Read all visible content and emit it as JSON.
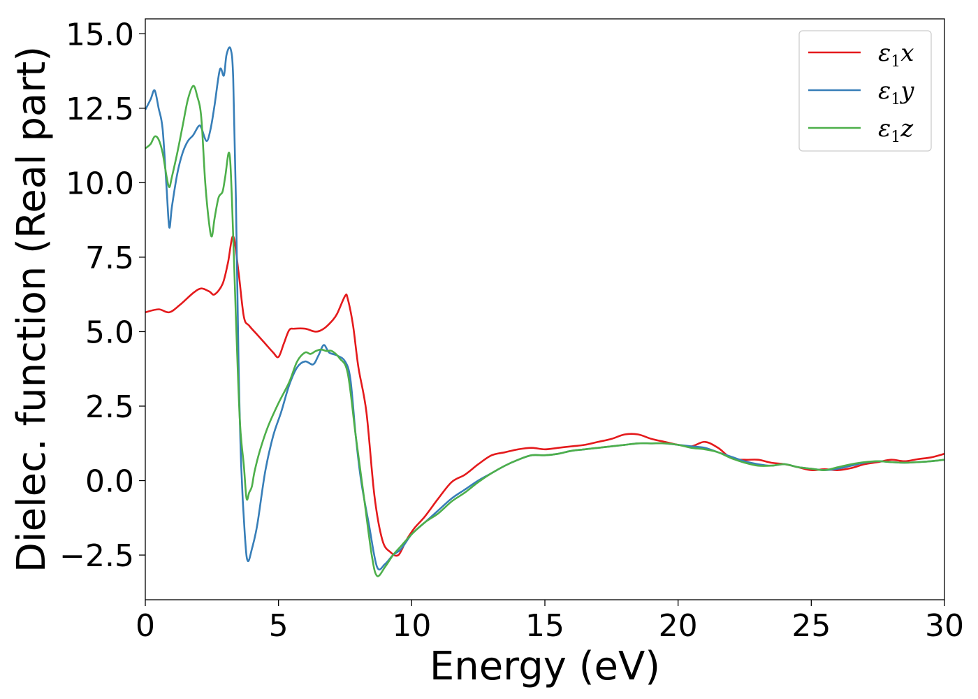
{
  "chart_data": {
    "type": "line",
    "title": "",
    "xlabel": "Energy (eV)",
    "ylabel": "Dielec. function (Real part)",
    "xlim": [
      0,
      30
    ],
    "ylim": [
      -4.0,
      15.5
    ],
    "xticks": [
      0,
      5,
      10,
      15,
      20,
      25,
      30
    ],
    "xtick_labels": [
      "0",
      "5",
      "10",
      "15",
      "20",
      "25",
      "30"
    ],
    "yticks": [
      -2.5,
      0.0,
      2.5,
      5.0,
      7.5,
      10.0,
      12.5,
      15.0
    ],
    "ytick_labels": [
      "−2.5",
      "0.0",
      "2.5",
      "5.0",
      "7.5",
      "10.0",
      "12.5",
      "15.0"
    ],
    "grid": false,
    "legend_position": "top-right",
    "series": [
      {
        "name": "ε1x",
        "legend_main": "ε",
        "legend_sub": "1",
        "legend_tail": "x",
        "color": "#e41a1c",
        "x": [
          0,
          0.5,
          0.9,
          1.3,
          1.8,
          2.1,
          2.4,
          2.6,
          2.9,
          3.1,
          3.3,
          3.5,
          3.7,
          3.9,
          4.2,
          4.5,
          4.8,
          5.0,
          5.2,
          5.4,
          5.6,
          6.0,
          6.4,
          6.7,
          7.0,
          7.2,
          7.5,
          7.6,
          7.8,
          8.0,
          8.3,
          8.6,
          8.9,
          9.2,
          9.5,
          9.8,
          10.1,
          10.5,
          11.0,
          11.5,
          12.0,
          12.5,
          13.0,
          13.5,
          14.0,
          14.5,
          15.0,
          15.5,
          16.0,
          16.5,
          17.0,
          17.5,
          18.0,
          18.5,
          19.0,
          19.5,
          20.0,
          20.5,
          21.0,
          21.5,
          22.0,
          22.5,
          23.0,
          23.5,
          24.0,
          24.5,
          25.0,
          25.5,
          26.0,
          26.5,
          27.0,
          27.5,
          28.0,
          28.5,
          29.0,
          29.5,
          30.0
        ],
        "y": [
          5.65,
          5.75,
          5.65,
          5.9,
          6.3,
          6.45,
          6.35,
          6.25,
          6.6,
          7.3,
          8.2,
          7.0,
          5.5,
          5.2,
          4.9,
          4.6,
          4.3,
          4.15,
          4.6,
          5.05,
          5.1,
          5.1,
          5.0,
          5.1,
          5.35,
          5.6,
          6.2,
          6.1,
          5.2,
          3.8,
          2.3,
          -0.5,
          -2.0,
          -2.4,
          -2.5,
          -2.0,
          -1.6,
          -1.2,
          -0.6,
          -0.05,
          0.2,
          0.55,
          0.85,
          0.95,
          1.05,
          1.1,
          1.05,
          1.1,
          1.15,
          1.2,
          1.3,
          1.4,
          1.55,
          1.55,
          1.4,
          1.3,
          1.2,
          1.15,
          1.3,
          1.1,
          0.75,
          0.7,
          0.7,
          0.6,
          0.55,
          0.45,
          0.35,
          0.38,
          0.35,
          0.42,
          0.55,
          0.62,
          0.7,
          0.65,
          0.72,
          0.78,
          0.9
        ]
      },
      {
        "name": "ε1y",
        "legend_main": "ε",
        "legend_sub": "1",
        "legend_tail": "y",
        "color": "#377eb8",
        "x": [
          0,
          0.2,
          0.35,
          0.5,
          0.65,
          0.8,
          0.9,
          1.0,
          1.2,
          1.4,
          1.6,
          1.8,
          2.0,
          2.1,
          2.3,
          2.45,
          2.6,
          2.8,
          2.95,
          3.05,
          3.2,
          3.3,
          3.4,
          3.5,
          3.6,
          3.75,
          3.85,
          4.0,
          4.2,
          4.5,
          4.8,
          5.1,
          5.4,
          5.7,
          6.0,
          6.3,
          6.5,
          6.7,
          6.9,
          7.2,
          7.5,
          7.7,
          7.9,
          8.1,
          8.4,
          8.7,
          9.0,
          9.3,
          9.6,
          10.0,
          10.5,
          11.0,
          11.5,
          12.0,
          12.5,
          13.0,
          13.5,
          14.0,
          14.5,
          15.0,
          15.5,
          16.0,
          16.5,
          17.0,
          17.5,
          18.0,
          18.5,
          19.0,
          19.5,
          20.0,
          20.5,
          21.0,
          21.5,
          22.0,
          22.5,
          23.0,
          23.5,
          24.0,
          24.5,
          25.0,
          25.5,
          26.0,
          26.5,
          27.0,
          27.5,
          28.0,
          28.5,
          29.0,
          29.5,
          30.0
        ],
        "y": [
          12.45,
          12.8,
          13.1,
          12.5,
          11.8,
          9.8,
          8.5,
          9.2,
          10.3,
          11.0,
          11.4,
          11.6,
          11.9,
          11.85,
          11.4,
          11.8,
          12.6,
          13.8,
          13.6,
          14.3,
          14.5,
          13.5,
          9.5,
          4.0,
          0.5,
          -2.0,
          -2.7,
          -2.3,
          -1.5,
          0.3,
          1.5,
          2.3,
          3.2,
          3.8,
          4.0,
          3.9,
          4.2,
          4.55,
          4.3,
          4.2,
          4.0,
          3.4,
          1.5,
          0.0,
          -1.5,
          -2.9,
          -2.8,
          -2.5,
          -2.3,
          -1.8,
          -1.4,
          -1.0,
          -0.6,
          -0.3,
          0.0,
          0.25,
          0.5,
          0.7,
          0.85,
          0.85,
          0.9,
          1.0,
          1.05,
          1.1,
          1.15,
          1.2,
          1.25,
          1.25,
          1.25,
          1.2,
          1.15,
          1.1,
          0.95,
          0.8,
          0.65,
          0.55,
          0.5,
          0.55,
          0.45,
          0.4,
          0.35,
          0.4,
          0.5,
          0.6,
          0.65,
          0.62,
          0.6,
          0.62,
          0.65,
          0.7
        ]
      },
      {
        "name": "ε1z",
        "legend_main": "ε",
        "legend_sub": "1",
        "legend_tail": "z",
        "color": "#4daf4a",
        "x": [
          0,
          0.2,
          0.35,
          0.5,
          0.65,
          0.8,
          0.9,
          1.0,
          1.2,
          1.4,
          1.6,
          1.8,
          1.95,
          2.1,
          2.25,
          2.4,
          2.5,
          2.6,
          2.75,
          2.9,
          3.0,
          3.15,
          3.25,
          3.4,
          3.55,
          3.7,
          3.8,
          3.9,
          4.0,
          4.1,
          4.3,
          4.6,
          5.0,
          5.4,
          5.7,
          6.0,
          6.2,
          6.4,
          6.6,
          6.8,
          7.0,
          7.3,
          7.6,
          7.9,
          8.2,
          8.5,
          8.7,
          9.0,
          9.3,
          9.6,
          10.0,
          10.5,
          11.0,
          11.5,
          12.0,
          12.5,
          13.0,
          13.5,
          14.0,
          14.5,
          15.0,
          15.5,
          16.0,
          16.5,
          17.0,
          17.5,
          18.0,
          18.5,
          19.0,
          19.5,
          20.0,
          20.5,
          21.0,
          21.5,
          22.0,
          22.5,
          23.0,
          23.5,
          24.0,
          24.5,
          25.0,
          25.5,
          26.0,
          26.5,
          27.0,
          27.5,
          28.0,
          28.5,
          29.0,
          29.5,
          30.0
        ],
        "y": [
          11.15,
          11.3,
          11.55,
          11.45,
          11.0,
          10.2,
          9.85,
          10.2,
          11.0,
          11.9,
          12.8,
          13.25,
          12.9,
          12.2,
          10.0,
          8.6,
          8.2,
          8.8,
          9.5,
          9.7,
          10.2,
          11.0,
          9.5,
          5.5,
          2.0,
          0.5,
          -0.6,
          -0.4,
          -0.2,
          0.3,
          1.0,
          1.8,
          2.6,
          3.3,
          4.0,
          4.3,
          4.25,
          4.35,
          4.4,
          4.35,
          4.35,
          4.1,
          3.6,
          1.5,
          -0.5,
          -2.5,
          -3.2,
          -2.9,
          -2.5,
          -2.2,
          -1.8,
          -1.4,
          -1.1,
          -0.7,
          -0.4,
          -0.05,
          0.25,
          0.5,
          0.7,
          0.85,
          0.85,
          0.9,
          1.0,
          1.05,
          1.1,
          1.15,
          1.2,
          1.25,
          1.25,
          1.25,
          1.2,
          1.1,
          1.05,
          0.95,
          0.75,
          0.6,
          0.5,
          0.5,
          0.55,
          0.45,
          0.4,
          0.35,
          0.45,
          0.55,
          0.62,
          0.65,
          0.62,
          0.6,
          0.62,
          0.65,
          0.7
        ]
      }
    ]
  }
}
